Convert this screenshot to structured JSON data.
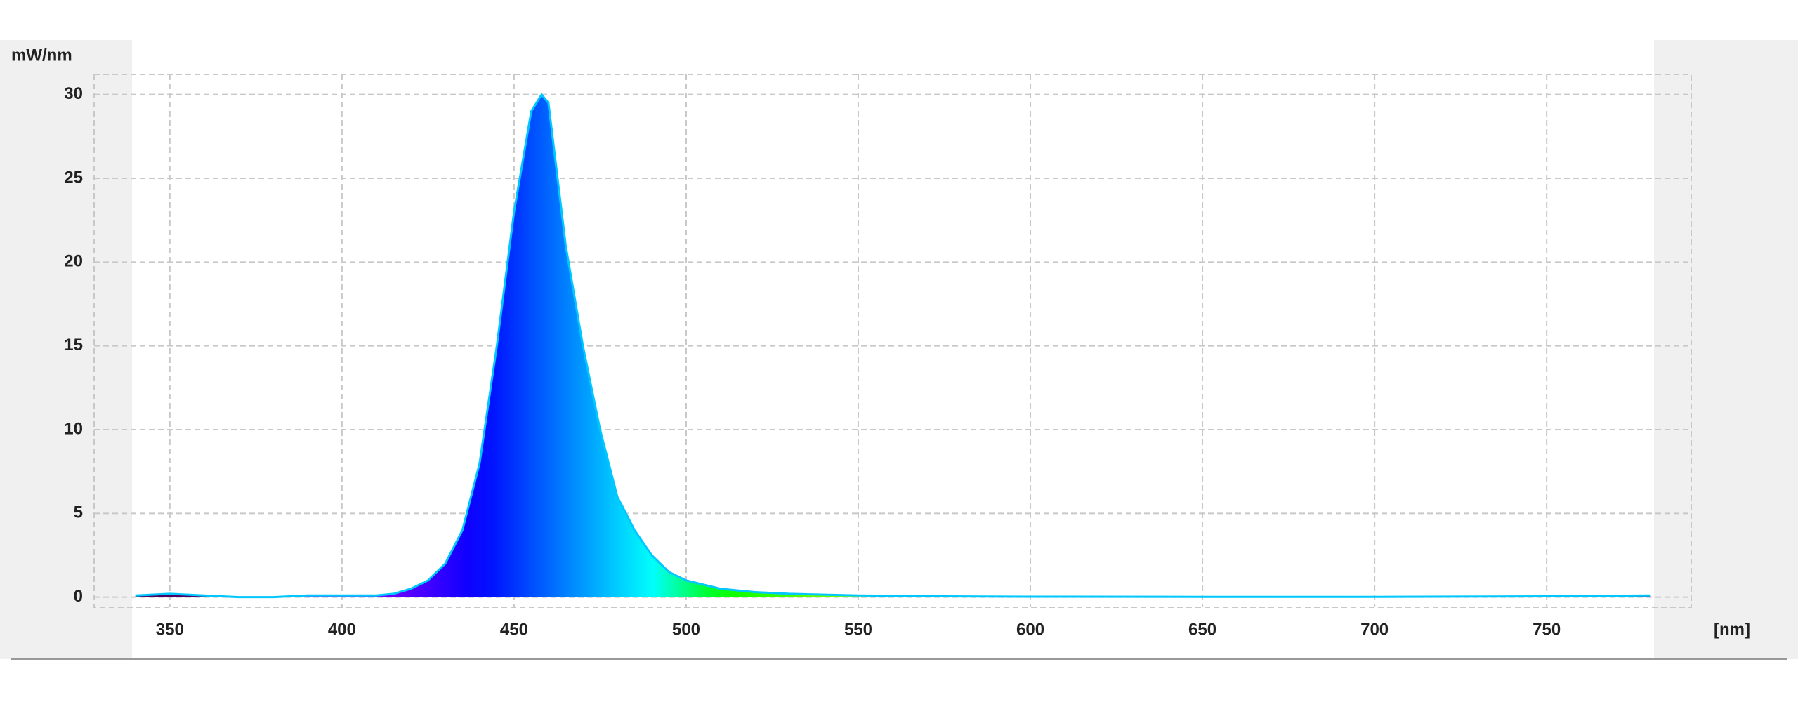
{
  "chart_data": {
    "type": "area",
    "y_label": "mW/nm",
    "x_label": "[nm]",
    "x": [
      340,
      350,
      360,
      370,
      380,
      390,
      400,
      410,
      415,
      420,
      425,
      430,
      435,
      440,
      445,
      450,
      455,
      458,
      460,
      465,
      470,
      475,
      480,
      485,
      490,
      495,
      500,
      510,
      520,
      530,
      540,
      550,
      575,
      600,
      650,
      700,
      750,
      780
    ],
    "values": [
      0.1,
      0.2,
      0.1,
      0,
      0,
      0.1,
      0.1,
      0.1,
      0.2,
      0.5,
      1,
      2,
      4,
      8,
      15,
      23,
      29,
      30,
      29.5,
      21,
      15,
      10,
      6,
      4,
      2.5,
      1.5,
      1,
      0.5,
      0.3,
      0.2,
      0.15,
      0.1,
      0.05,
      0.03,
      0.02,
      0.02,
      0.05,
      0.1
    ],
    "color": "#00c8ff",
    "xlim": [
      328,
      792
    ],
    "ylim": [
      -0.6,
      31.2
    ],
    "xticks": [
      350,
      400,
      450,
      500,
      550,
      600,
      650,
      700,
      750
    ],
    "yticks": [
      0,
      5,
      10,
      15,
      20,
      25,
      30
    ],
    "grid": true
  }
}
